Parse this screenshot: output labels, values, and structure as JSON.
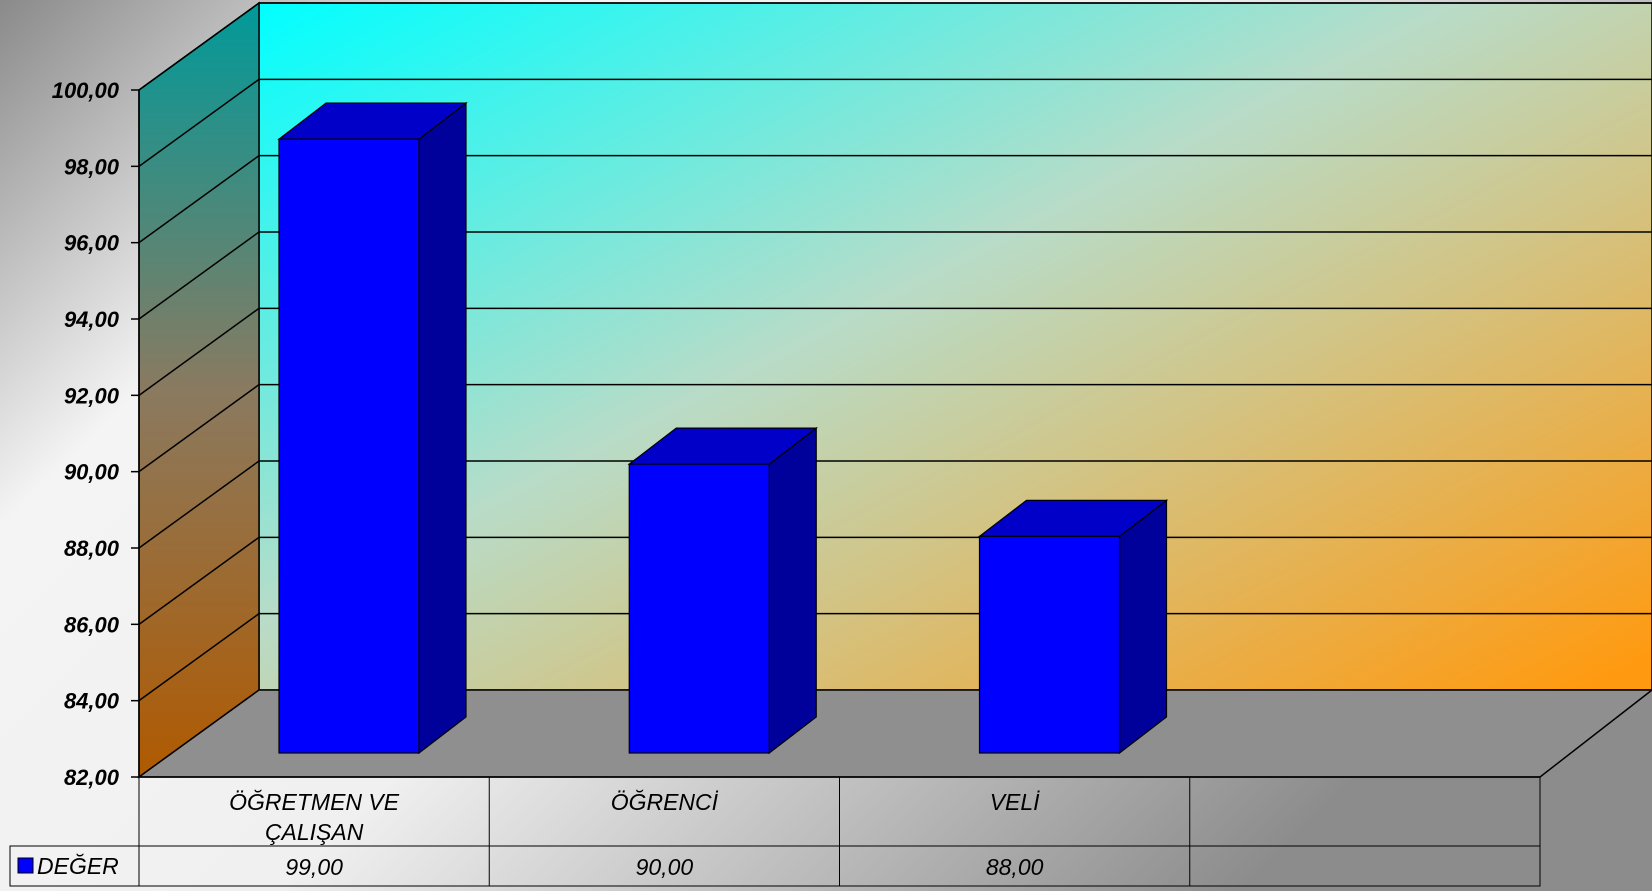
{
  "chart_data": {
    "type": "bar",
    "categories": [
      "ÖĞRETMEN VE ÇALIŞAN",
      "ÖĞRENCİ",
      "VELİ",
      ""
    ],
    "category_lines": [
      [
        "ÖĞRETMEN VE",
        "ÇALIŞAN"
      ],
      [
        "ÖĞRENCİ"
      ],
      [
        "VELİ"
      ],
      [
        ""
      ]
    ],
    "series": [
      {
        "name": "DEĞER",
        "values": [
          99,
          90,
          88,
          null
        ],
        "value_labels": [
          "99,00",
          "90,00",
          "88,00",
          ""
        ]
      }
    ],
    "y_ticks": [
      "82,00",
      "84,00",
      "86,00",
      "88,00",
      "90,00",
      "92,00",
      "94,00",
      "96,00",
      "98,00",
      "100,00"
    ],
    "ylim": [
      82,
      100
    ],
    "grid": true,
    "three_d": true,
    "legend": "data-table-left",
    "colors": {
      "bar_front": "#0000FF",
      "bar_side": "#00009A",
      "bar_top": "#0000C8",
      "floor": "#8F8F8F",
      "wall_top": "#00FFFF",
      "wall_bottom": "#FF9A10"
    }
  }
}
